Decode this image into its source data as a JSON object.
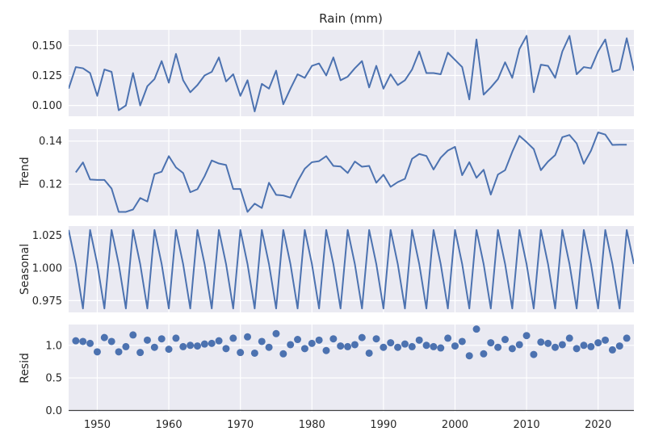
{
  "chart_data": {
    "type": "line",
    "title": "Rain (mm)",
    "xlim": [
      1946,
      2025
    ],
    "x_ticks": [
      "1950",
      "1960",
      "1970",
      "1980",
      "1990",
      "2000",
      "2010",
      "2020"
    ],
    "series_color": "#4c72b0",
    "panels": [
      {
        "name": "observed",
        "ylabel": "",
        "kind": "line",
        "ylim": [
          0.091,
          0.163
        ],
        "y_ticks": [
          "0.100",
          "0.125",
          "0.150"
        ],
        "start_year": 1946,
        "values": [
          0.114,
          0.132,
          0.131,
          0.127,
          0.108,
          0.13,
          0.128,
          0.096,
          0.1,
          0.127,
          0.1,
          0.116,
          0.122,
          0.137,
          0.119,
          0.143,
          0.121,
          0.111,
          0.117,
          0.125,
          0.128,
          0.14,
          0.12,
          0.126,
          0.108,
          0.121,
          0.095,
          0.118,
          0.114,
          0.129,
          0.101,
          0.114,
          0.126,
          0.123,
          0.133,
          0.135,
          0.125,
          0.14,
          0.121,
          0.124,
          0.131,
          0.137,
          0.115,
          0.133,
          0.114,
          0.126,
          0.117,
          0.121,
          0.13,
          0.145,
          0.127,
          0.127,
          0.126,
          0.144,
          0.138,
          0.132,
          0.105,
          0.155,
          0.109,
          0.115,
          0.122,
          0.136,
          0.123,
          0.147,
          0.158,
          0.111,
          0.134,
          0.133,
          0.123,
          0.145,
          0.158,
          0.126,
          0.132,
          0.131,
          0.145,
          0.155,
          0.128,
          0.13,
          0.156,
          0.129
        ]
      },
      {
        "name": "trend",
        "ylabel": "Trend",
        "kind": "line",
        "ylim": [
          0.1055,
          0.1455
        ],
        "y_ticks": [
          "0.12",
          "0.14"
        ],
        "start_year": 1947,
        "values": [
          0.1255,
          0.1301,
          0.1222,
          0.122,
          0.122,
          0.118,
          0.1072,
          0.1072,
          0.1083,
          0.1136,
          0.112,
          0.1247,
          0.1258,
          0.133,
          0.1278,
          0.1252,
          0.1163,
          0.1177,
          0.1237,
          0.131,
          0.1296,
          0.1289,
          0.1178,
          0.1178,
          0.1072,
          0.111,
          0.109,
          0.1207,
          0.1151,
          0.1148,
          0.1138,
          0.1213,
          0.1272,
          0.1302,
          0.1307,
          0.133,
          0.1285,
          0.1282,
          0.1252,
          0.1305,
          0.1281,
          0.1285,
          0.1207,
          0.1244,
          0.1188,
          0.121,
          0.1225,
          0.1318,
          0.134,
          0.1331,
          0.1268,
          0.1323,
          0.1356,
          0.1373,
          0.1242,
          0.1302,
          0.123,
          0.1267,
          0.1152,
          0.1245,
          0.1265,
          0.135,
          0.1424,
          0.1395,
          0.1363,
          0.1265,
          0.1305,
          0.1335,
          0.1418,
          0.1428,
          0.1389,
          0.1295,
          0.1355,
          0.144,
          0.143,
          0.1382,
          0.1383,
          0.1383
        ]
      },
      {
        "name": "seasonal",
        "ylabel": "Seasonal",
        "kind": "line",
        "ylim": [
          0.966,
          1.032
        ],
        "y_ticks": [
          "0.975",
          "1.000",
          "1.025"
        ],
        "start_year": 1946,
        "pattern": [
          1.029,
          1.003,
          0.969
        ],
        "values": []
      },
      {
        "name": "resid",
        "ylabel": "Resid",
        "kind": "scatter",
        "ylim": [
          -0.02,
          1.32
        ],
        "y_ticks": [
          "0.0",
          "0.5",
          "1.0"
        ],
        "baseline": 0,
        "start_year": 1947,
        "values": [
          1.07,
          1.06,
          1.03,
          0.9,
          1.12,
          1.06,
          0.9,
          0.98,
          1.16,
          0.89,
          1.08,
          0.97,
          1.1,
          0.94,
          1.11,
          0.98,
          1.0,
          0.99,
          1.02,
          1.03,
          1.07,
          0.95,
          1.11,
          0.89,
          1.13,
          0.88,
          1.06,
          0.97,
          1.18,
          0.87,
          1.01,
          1.09,
          0.95,
          1.03,
          1.08,
          0.92,
          1.1,
          0.99,
          0.98,
          1.01,
          1.12,
          0.88,
          1.1,
          0.97,
          1.04,
          0.97,
          1.02,
          0.98,
          1.08,
          1.0,
          0.98,
          0.96,
          1.11,
          0.99,
          1.06,
          0.84,
          1.25,
          0.87,
          1.04,
          0.97,
          1.09,
          0.95,
          1.01,
          1.15,
          0.86,
          1.05,
          1.03,
          0.97,
          1.01,
          1.11,
          0.95,
          1.0,
          0.98,
          1.04,
          1.08,
          0.93,
          0.99,
          1.11
        ]
      }
    ]
  }
}
